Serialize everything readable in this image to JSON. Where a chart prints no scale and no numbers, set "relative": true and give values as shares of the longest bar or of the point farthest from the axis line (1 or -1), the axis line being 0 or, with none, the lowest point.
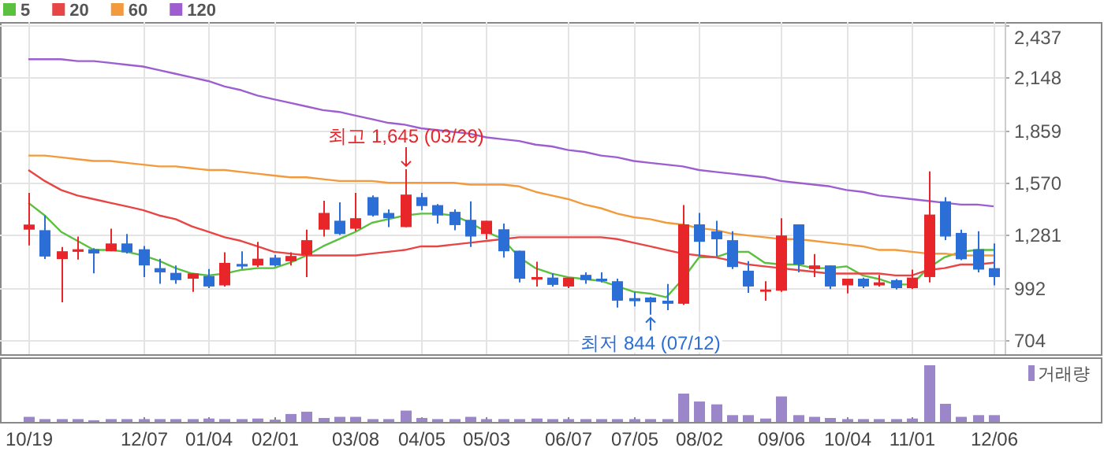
{
  "chart_data": [
    {
      "type": "candlestick",
      "categories": [
        null,
        null,
        null,
        null,
        null,
        null,
        null,
        null,
        null,
        null,
        null,
        null,
        null,
        null,
        null,
        null,
        null,
        null,
        null,
        null,
        null,
        null,
        null,
        null,
        null,
        null,
        null,
        null,
        null,
        null,
        null,
        null,
        null,
        null,
        null,
        null,
        null,
        null,
        null,
        null,
        null,
        null,
        null,
        null,
        null,
        null,
        null,
        null,
        null,
        null,
        null,
        null,
        null,
        null,
        null,
        null,
        null,
        null,
        null,
        null
      ],
      "ohlc": [
        [
          1312,
          1514,
          1225,
          1340
        ],
        [
          1309,
          1390,
          1150,
          1164
        ],
        [
          1150,
          1216,
          912,
          1193
        ],
        [
          1190,
          1274,
          1147,
          1204
        ],
        [
          1204,
          1210,
          1071,
          1181
        ],
        [
          1193,
          1317,
          1193,
          1236
        ],
        [
          1236,
          1288,
          1181,
          1187
        ],
        [
          1204,
          1222,
          1051,
          1115
        ],
        [
          1100,
          1152,
          1014,
          1077
        ],
        [
          1074,
          1115,
          1014,
          1034
        ],
        [
          1042,
          1071,
          970,
          1071
        ],
        [
          1057,
          1095,
          990,
          999
        ],
        [
          1005,
          1187,
          999,
          1129
        ],
        [
          1123,
          1193,
          1095,
          1109
        ],
        [
          1115,
          1245,
          1106,
          1152
        ],
        [
          1158,
          1173,
          1109,
          1115
        ],
        [
          1138,
          1187,
          1115,
          1167
        ],
        [
          1173,
          1312,
          1051,
          1254
        ],
        [
          1312,
          1471,
          1274,
          1404
        ],
        [
          1361,
          1462,
          1283,
          1288
        ],
        [
          1317,
          1514,
          1303,
          1375
        ],
        [
          1491,
          1500,
          1384,
          1390
        ],
        [
          1404,
          1424,
          1326,
          1375
        ],
        [
          1326,
          1645,
          1326,
          1505
        ],
        [
          1491,
          1514,
          1419,
          1442
        ],
        [
          1447,
          1453,
          1346,
          1390
        ],
        [
          1410,
          1424,
          1309,
          1337
        ],
        [
          1366,
          1468,
          1216,
          1274
        ],
        [
          1288,
          1361,
          1259,
          1361
        ],
        [
          1314,
          1346,
          1158,
          1193
        ],
        [
          1196,
          1196,
          1022,
          1042
        ],
        [
          1037,
          1135,
          999,
          1051
        ],
        [
          1048,
          1071,
          999,
          1008
        ],
        [
          999,
          1048,
          990,
          1048
        ],
        [
          1063,
          1077,
          1014,
          1034
        ],
        [
          1042,
          1077,
          1022,
          1028
        ],
        [
          1028,
          1042,
          883,
          921
        ],
        [
          935,
          970,
          889,
          918
        ],
        [
          938,
          941,
          844,
          912
        ],
        [
          921,
          1013,
          869,
          904
        ],
        [
          904,
          1447,
          898,
          1341
        ],
        [
          1341,
          1404,
          1164,
          1245
        ],
        [
          1303,
          1361,
          1164,
          1259
        ],
        [
          1254,
          1303,
          1095,
          1106
        ],
        [
          1086,
          1138,
          964,
          999
        ],
        [
          970,
          1028,
          921,
          982
        ],
        [
          976,
          1375,
          970,
          1280
        ],
        [
          1341,
          1341,
          1077,
          1120
        ],
        [
          1095,
          1178,
          1051,
          1115
        ],
        [
          1115,
          1115,
          985,
          999
        ],
        [
          1005,
          1042,
          961,
          1042
        ],
        [
          1042,
          1048,
          990,
          999
        ],
        [
          1005,
          1063,
          999,
          1022
        ],
        [
          1034,
          1040,
          982,
          990
        ],
        [
          990,
          1092,
          985,
          1048
        ],
        [
          1051,
          1633,
          1022,
          1395
        ],
        [
          1468,
          1491,
          1254,
          1274
        ],
        [
          1294,
          1312,
          1144,
          1149
        ],
        [
          1204,
          1303,
          1077,
          1092
        ],
        [
          1100,
          1236,
          1005,
          1051
        ]
      ],
      "colors": [
        "#e8262a",
        "#2b6fd6",
        "#e8262a",
        "#e8262a",
        "#2b6fd6",
        "#e8262a",
        "#2b6fd6",
        "#2b6fd6",
        "#2b6fd6",
        "#2b6fd6",
        "#e8262a",
        "#2b6fd6",
        "#e8262a",
        "#2b6fd6",
        "#e8262a",
        "#2b6fd6",
        "#e8262a",
        "#e8262a",
        "#e8262a",
        "#2b6fd6",
        "#e8262a",
        "#2b6fd6",
        "#2b6fd6",
        "#e8262a",
        "#2b6fd6",
        "#2b6fd6",
        "#2b6fd6",
        "#2b6fd6",
        "#e8262a",
        "#2b6fd6",
        "#2b6fd6",
        "#e8262a",
        "#2b6fd6",
        "#e8262a",
        "#2b6fd6",
        "#2b6fd6",
        "#2b6fd6",
        "#2b6fd6",
        "#2b6fd6",
        "#2b6fd6",
        "#e8262a",
        "#2b6fd6",
        "#2b6fd6",
        "#2b6fd6",
        "#2b6fd6",
        "#e8262a",
        "#e8262a",
        "#2b6fd6",
        "#e8262a",
        "#2b6fd6",
        "#e8262a",
        "#2b6fd6",
        "#e8262a",
        "#2b6fd6",
        "#e8262a",
        "#e8262a",
        "#2b6fd6",
        "#2b6fd6",
        "#2b6fd6",
        "#2b6fd6"
      ],
      "series": [
        {
          "name": "5",
          "type": "line",
          "color": "#5bbf3f",
          "values": [
            1460,
            1390,
            1300,
            1250,
            1200,
            1200,
            1190,
            1170,
            1140,
            1100,
            1070,
            1060,
            1070,
            1090,
            1100,
            1100,
            1130,
            1170,
            1220,
            1260,
            1300,
            1350,
            1370,
            1390,
            1400,
            1400,
            1390,
            1350,
            1300,
            1260,
            1160,
            1100,
            1070,
            1050,
            1040,
            1030,
            1000,
            970,
            960,
            940,
            1040,
            1160,
            1160,
            1190,
            1190,
            1130,
            1120,
            1120,
            1100,
            1100,
            1110,
            1060,
            1040,
            1010,
            1010,
            1100,
            1160,
            1190,
            1200,
            1200
          ]
        },
        {
          "name": "20",
          "type": "line",
          "color": "#e84545",
          "values": [
            1640,
            1580,
            1530,
            1500,
            1480,
            1460,
            1440,
            1420,
            1390,
            1370,
            1330,
            1300,
            1270,
            1250,
            1220,
            1190,
            1180,
            1170,
            1170,
            1170,
            1170,
            1180,
            1190,
            1200,
            1220,
            1220,
            1230,
            1240,
            1250,
            1260,
            1270,
            1270,
            1270,
            1270,
            1270,
            1270,
            1260,
            1240,
            1220,
            1200,
            1180,
            1170,
            1160,
            1140,
            1120,
            1110,
            1100,
            1090,
            1080,
            1070,
            1070,
            1070,
            1070,
            1060,
            1060,
            1090,
            1100,
            1120,
            1120,
            1130
          ]
        },
        {
          "name": "60",
          "type": "line",
          "color": "#f29a3c",
          "values": [
            1720,
            1720,
            1710,
            1700,
            1690,
            1690,
            1680,
            1670,
            1660,
            1660,
            1650,
            1640,
            1640,
            1630,
            1620,
            1610,
            1600,
            1600,
            1590,
            1580,
            1580,
            1580,
            1570,
            1570,
            1570,
            1570,
            1570,
            1560,
            1560,
            1560,
            1550,
            1520,
            1500,
            1480,
            1450,
            1430,
            1400,
            1380,
            1370,
            1350,
            1340,
            1320,
            1310,
            1290,
            1280,
            1270,
            1260,
            1260,
            1250,
            1240,
            1230,
            1220,
            1200,
            1200,
            1190,
            1180,
            1180,
            1170,
            1170,
            1170
          ]
        },
        {
          "name": "120",
          "type": "line",
          "color": "#9d5fd0",
          "values": [
            2250,
            2250,
            2250,
            2240,
            2240,
            2230,
            2220,
            2210,
            2190,
            2170,
            2150,
            2130,
            2100,
            2080,
            2050,
            2030,
            2010,
            1990,
            1970,
            1960,
            1940,
            1920,
            1900,
            1890,
            1870,
            1860,
            1850,
            1840,
            1820,
            1810,
            1800,
            1780,
            1770,
            1750,
            1740,
            1720,
            1710,
            1690,
            1680,
            1670,
            1660,
            1640,
            1630,
            1620,
            1610,
            1600,
            1580,
            1570,
            1560,
            1550,
            1530,
            1520,
            1500,
            1490,
            1480,
            1470,
            1460,
            1450,
            1450,
            1440
          ]
        }
      ],
      "ylim": [
        626,
        2455
      ],
      "yticks": [
        {
          "value": 704,
          "label": "704"
        },
        {
          "value": 992,
          "label": "992"
        },
        {
          "value": 1281,
          "label": "1,281"
        },
        {
          "value": 1570,
          "label": "1,570"
        },
        {
          "value": 1859,
          "label": "1,859"
        },
        {
          "value": 2148,
          "label": "2,148"
        },
        {
          "value": 2437,
          "label": "2,437"
        }
      ],
      "grid": true,
      "legend": "top left",
      "tick_labels": "y",
      "annotations": [
        {
          "text": "최고 1,645 (03/29)",
          "y": 1645
        },
        {
          "text": "최저 844 (07/12)",
          "y": 844
        }
      ]
    },
    {
      "type": "bar",
      "categories": [
        "10/19",
        null,
        null,
        null,
        null,
        null,
        null,
        "12/07",
        null,
        null,
        null,
        "01/04",
        null,
        null,
        null,
        "02/01",
        null,
        null,
        null,
        null,
        "03/08",
        null,
        null,
        null,
        "04/05",
        null,
        null,
        null,
        "05/03",
        null,
        null,
        null,
        null,
        "06/07",
        null,
        null,
        null,
        "07/05",
        null,
        null,
        null,
        "08/02",
        null,
        null,
        null,
        null,
        "09/06",
        null,
        null,
        null,
        "10/04",
        null,
        null,
        null,
        "11/01",
        null,
        null,
        null,
        null,
        "12/06"
      ],
      "relative": true,
      "series": [
        {
          "name": "거래량",
          "color": "#9a86c8",
          "values": [
            0.09,
            0.05,
            0.05,
            0.05,
            0.03,
            0.05,
            0.05,
            0.05,
            0.05,
            0.05,
            0.05,
            0.06,
            0.05,
            0.05,
            0.06,
            0.04,
            0.14,
            0.18,
            0.07,
            0.09,
            0.09,
            0.05,
            0.05,
            0.2,
            0.07,
            0.05,
            0.05,
            0.09,
            0.05,
            0.05,
            0.05,
            0.06,
            0.05,
            0.05,
            0.05,
            0.05,
            0.05,
            0.05,
            0.05,
            0.05,
            0.5,
            0.36,
            0.31,
            0.12,
            0.12,
            0.06,
            0.45,
            0.12,
            0.09,
            0.07,
            0.05,
            0.05,
            0.05,
            0.05,
            0.06,
            1,
            0.32,
            0.09,
            0.12,
            0.12
          ]
        }
      ],
      "legend": "top right",
      "tick_labels": "x"
    }
  ]
}
